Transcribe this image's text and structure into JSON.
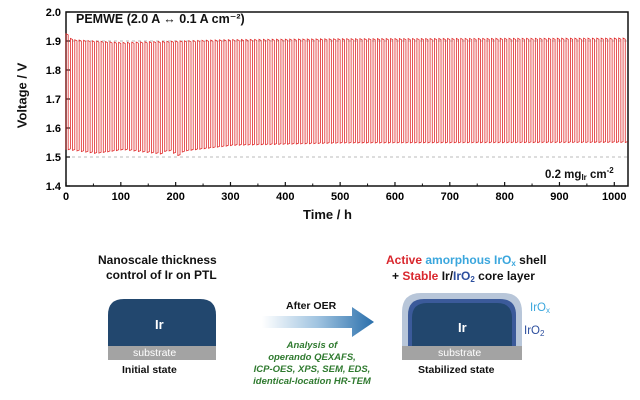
{
  "chart_data": {
    "type": "line",
    "title": "PEMWE (2.0 A ↔ 0.1 A cm⁻²)",
    "xlabel": "Time / h",
    "ylabel": "Voltage / V",
    "xlim": [
      0,
      1025
    ],
    "ylim": [
      1.4,
      2.0
    ],
    "xticks": [
      0,
      100,
      200,
      300,
      400,
      500,
      600,
      700,
      800,
      900,
      1000
    ],
    "yticks": [
      1.4,
      1.5,
      1.6,
      1.7,
      1.8,
      1.9,
      2.0
    ],
    "grid": false,
    "reference_lines": [
      1.9,
      1.5
    ],
    "series": [
      {
        "color": "#e02b2b",
        "cycle_period_h": 8,
        "upper_envelope": [
          [
            0,
            1.925
          ],
          [
            10,
            1.905
          ],
          [
            100,
            1.895
          ],
          [
            200,
            1.9
          ],
          [
            300,
            1.905
          ],
          [
            500,
            1.908
          ],
          [
            1000,
            1.91
          ]
        ],
        "lower_envelope": [
          [
            0,
            1.525
          ],
          [
            50,
            1.512
          ],
          [
            100,
            1.525
          ],
          [
            170,
            1.51
          ],
          [
            180,
            1.525
          ],
          [
            200,
            1.505
          ],
          [
            210,
            1.52
          ],
          [
            300,
            1.54
          ],
          [
            500,
            1.548
          ],
          [
            1000,
            1.55
          ]
        ]
      }
    ],
    "annotation": {
      "text": "0.2 mg",
      "sub": "Ir",
      "after": " cm",
      "sup": "-2"
    }
  },
  "diagram": {
    "left_title_line1": "Nanoscale thickness",
    "left_title_line2": "control of Ir on PTL",
    "left_block_label": "Ir",
    "left_substrate": "substrate",
    "left_caption": "Initial state",
    "arrow_label": "After OER",
    "analysis_lines": [
      "Analysis of",
      "operando QEXAFS,",
      "ICP-OES, XPS, SEM, EDS,",
      "identical-location HR-TEM"
    ],
    "right_title_active": "Active",
    "right_title_amorphous": " amorphous IrO",
    "right_title_x": "x",
    "right_title_shell": " shell",
    "right_title_plus": "+ ",
    "right_title_stable": "Stable",
    "right_title_ir": " Ir/",
    "right_title_iro2": "IrO",
    "right_title_2": "2",
    "right_title_core": " core layer",
    "right_block_label": "Ir",
    "right_substrate": "substrate",
    "right_caption": "Stabilized state",
    "iro_x_label": "IrO",
    "iro_x_sub": "x",
    "iro2_label": "IrO",
    "iro2_sub": "2",
    "colors": {
      "ir_block": "#22476e",
      "substrate": "#a3a3a3",
      "shell": "#b8c6d9",
      "core": "#3b5a9a",
      "arrow": "#2a6fab",
      "trace": "#e02b2b"
    }
  }
}
